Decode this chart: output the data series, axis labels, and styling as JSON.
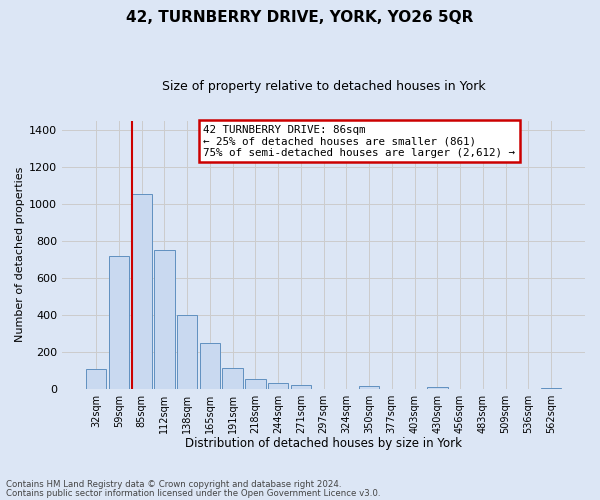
{
  "title": "42, TURNBERRY DRIVE, YORK, YO26 5QR",
  "subtitle": "Size of property relative to detached houses in York",
  "xlabel": "Distribution of detached houses by size in York",
  "ylabel": "Number of detached properties",
  "footnote1": "Contains HM Land Registry data © Crown copyright and database right 2024.",
  "footnote2": "Contains public sector information licensed under the Open Government Licence v3.0.",
  "bar_labels": [
    "32sqm",
    "59sqm",
    "85sqm",
    "112sqm",
    "138sqm",
    "165sqm",
    "191sqm",
    "218sqm",
    "244sqm",
    "271sqm",
    "297sqm",
    "324sqm",
    "350sqm",
    "377sqm",
    "403sqm",
    "430sqm",
    "456sqm",
    "483sqm",
    "509sqm",
    "536sqm",
    "562sqm"
  ],
  "bar_values": [
    105,
    715,
    1050,
    750,
    400,
    245,
    110,
    50,
    28,
    22,
    0,
    0,
    15,
    0,
    0,
    10,
    0,
    0,
    0,
    0,
    5
  ],
  "bar_color": "#c9d9f0",
  "bar_edge_color": "#6090c0",
  "ylim": [
    0,
    1450
  ],
  "yticks": [
    0,
    200,
    400,
    600,
    800,
    1000,
    1200,
    1400
  ],
  "annotation_line1": "42 TURNBERRY DRIVE: 86sqm",
  "annotation_line2": "← 25% of detached houses are smaller (861)",
  "annotation_line3": "75% of semi-detached houses are larger (2,612) →",
  "vline_color": "#cc0000",
  "box_color": "#ffffff",
  "box_edge_color": "#cc0000",
  "grid_color": "#cccccc",
  "background_color": "#dce6f5"
}
